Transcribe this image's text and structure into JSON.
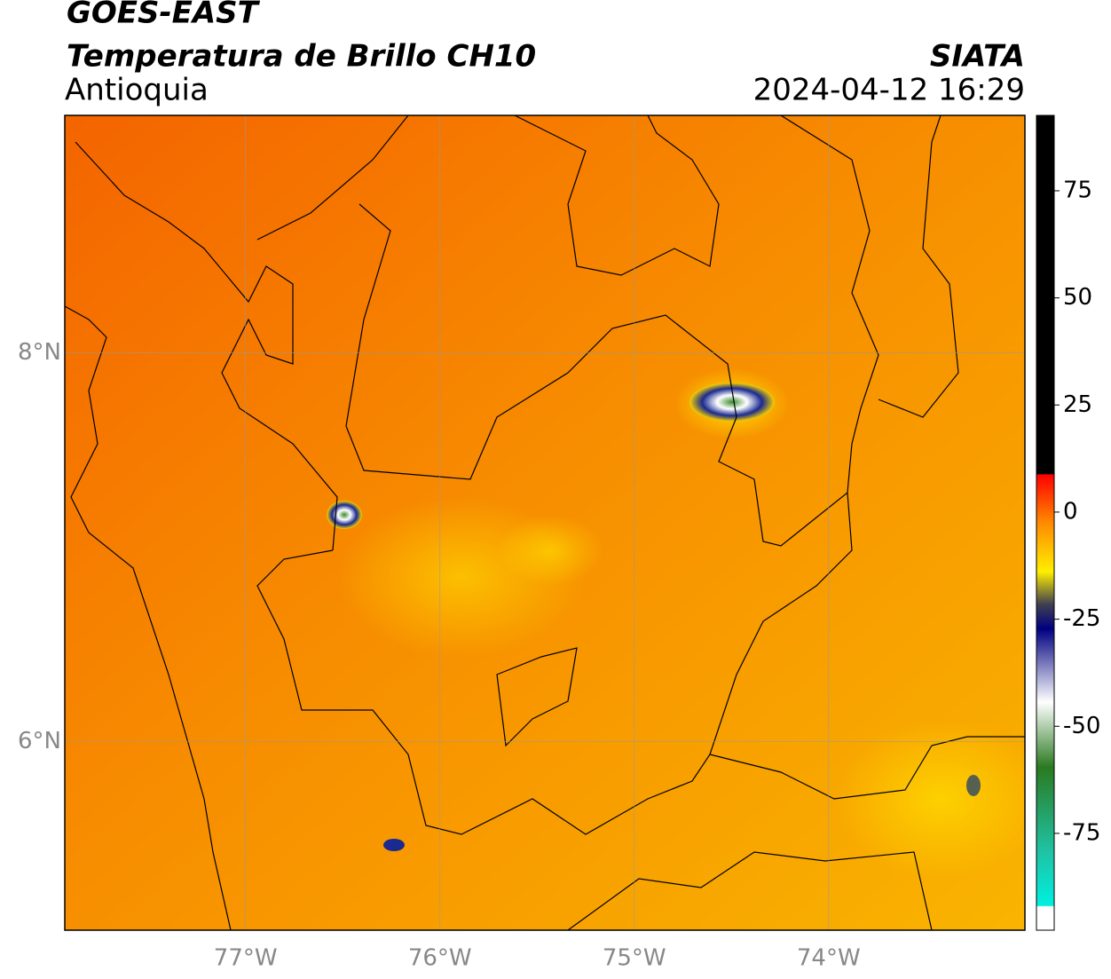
{
  "header": {
    "title": "GOES-EAST",
    "subtitle": "Temperatura de Brillo CH10",
    "region": "Antioquia",
    "source": "SIATA",
    "timestamp": "2024-04-12 16:29"
  },
  "map": {
    "xlim": [
      -77.93,
      -72.99
    ],
    "ylim": [
      5.03,
      9.22
    ],
    "xticks": [
      {
        "value": -77,
        "label": "77°W"
      },
      {
        "value": -76,
        "label": "76°W"
      },
      {
        "value": -75,
        "label": "75°W"
      },
      {
        "value": -74,
        "label": "74°W"
      }
    ],
    "yticks": [
      {
        "value": 8,
        "label": "8°N"
      },
      {
        "value": 6,
        "label": "6°N"
      }
    ],
    "grid": true
  },
  "colorbar": {
    "lim": [
      -97.6,
      92.6
    ],
    "ticks": [
      75,
      50,
      25,
      0,
      -25,
      -50,
      -75
    ]
  }
}
